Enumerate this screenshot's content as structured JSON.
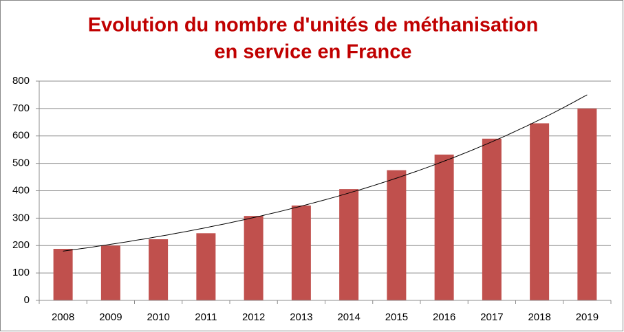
{
  "chart_data": {
    "type": "bar",
    "title": [
      "Evolution du nombre d'unités de méthanisation",
      "en service en France"
    ],
    "categories": [
      "2008",
      "2009",
      "2010",
      "2011",
      "2012",
      "2013",
      "2014",
      "2015",
      "2016",
      "2017",
      "2018",
      "2019"
    ],
    "values": [
      188,
      200,
      223,
      245,
      308,
      346,
      406,
      475,
      532,
      590,
      646,
      700
    ],
    "color": "#c0504d",
    "ylim": [
      0,
      800
    ],
    "yticks": [
      0,
      100,
      200,
      300,
      400,
      500,
      600,
      700,
      800
    ],
    "grid": true,
    "trendline": "exponential"
  }
}
